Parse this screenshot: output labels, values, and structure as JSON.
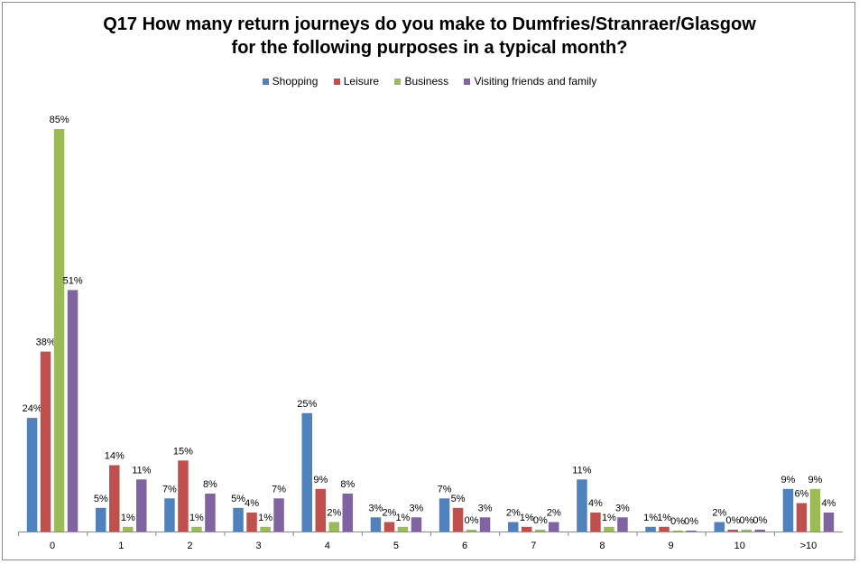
{
  "chart_data": {
    "type": "bar",
    "title_line1": "Q17 How many return journeys do you make to Dumfries/Stranraer/Glasgow",
    "title_line2": "for the following purposes in a typical month?",
    "categories": [
      "0",
      "1",
      "2",
      "3",
      "4",
      "5",
      "6",
      "7",
      "8",
      "9",
      "10",
      ">10"
    ],
    "ylim": [
      0,
      100
    ],
    "grid": false,
    "legend_position": "top",
    "series": [
      {
        "name": "Shopping",
        "color": "#4f81bd",
        "values": [
          24,
          5,
          7,
          5,
          25,
          3,
          7,
          2,
          11,
          1,
          2,
          9
        ],
        "labels": [
          "24%",
          "5%",
          "7%",
          "5%",
          "25%",
          "3%",
          "7%",
          "2%",
          "11%",
          "1%",
          "2%",
          "9%"
        ]
      },
      {
        "name": "Leisure",
        "color": "#c0504d",
        "values": [
          38,
          14,
          15,
          4,
          9,
          2,
          5,
          1,
          4,
          1,
          0.4,
          6
        ],
        "labels": [
          "38%",
          "14%",
          "15%",
          "4%",
          "9%",
          "2%",
          "5%",
          "1%",
          "4%",
          "1%",
          "0%",
          "6%"
        ]
      },
      {
        "name": "Business",
        "color": "#9bbb59",
        "values": [
          85,
          1,
          1,
          1,
          2,
          1,
          0.4,
          0.4,
          1,
          0.2,
          0.4,
          9
        ],
        "labels": [
          "85%",
          "1%",
          "1%",
          "1%",
          "2%",
          "1%",
          "0%",
          "0%",
          "1%",
          "0%",
          "0%",
          "9%"
        ]
      },
      {
        "name": "Visiting friends and family",
        "color": "#8064a2",
        "values": [
          51,
          11,
          8,
          7,
          8,
          3,
          3,
          2,
          3,
          0.2,
          0.4,
          4
        ],
        "labels": [
          "51%",
          "11%",
          "8%",
          "7%",
          "8%",
          "3%",
          "3%",
          "2%",
          "3%",
          "0%",
          "0%",
          "4%"
        ]
      }
    ]
  }
}
